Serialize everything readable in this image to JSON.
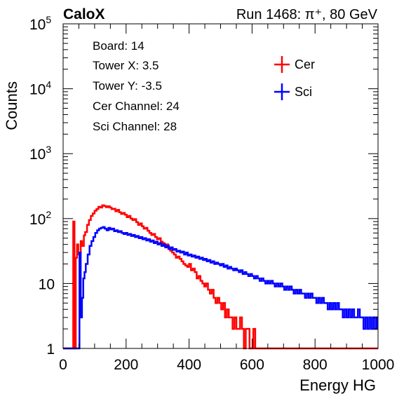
{
  "chart_data": {
    "type": "histogram",
    "title_left": "CaloX",
    "title_right": "Run 1468:   π⁺, 80 GeV",
    "xlabel": "Energy HG",
    "ylabel": "Counts",
    "xlim": [
      0,
      1000
    ],
    "ylim": [
      1,
      100000
    ],
    "yscale": "log",
    "x_ticks": [
      {
        "value": 0,
        "label": "0"
      },
      {
        "value": 200,
        "label": "200"
      },
      {
        "value": 400,
        "label": "400"
      },
      {
        "value": 600,
        "label": "600"
      },
      {
        "value": 800,
        "label": "800"
      },
      {
        "value": 1000,
        "label": "1000"
      }
    ],
    "y_ticks": [
      {
        "value": 1,
        "base": "1",
        "exp": ""
      },
      {
        "value": 10,
        "base": "10",
        "exp": ""
      },
      {
        "value": 100,
        "base": "10",
        "exp": "2"
      },
      {
        "value": 1000,
        "base": "10",
        "exp": "3"
      },
      {
        "value": 10000,
        "base": "10",
        "exp": "4"
      },
      {
        "value": 100000,
        "base": "10",
        "exp": "5"
      }
    ],
    "info_lines": [
      "Board: 14",
      "Tower X: 3.5",
      "Tower Y: -3.5",
      "Cer Channel: 24",
      "Sci Channel: 28"
    ],
    "legend_position": "top-right",
    "series": [
      {
        "name": "Cer",
        "color": "#ff0000",
        "points": [
          [
            0,
            1
          ],
          [
            30,
            1
          ],
          [
            32,
            90
          ],
          [
            36,
            1
          ],
          [
            38,
            1
          ],
          [
            40,
            25
          ],
          [
            44,
            40
          ],
          [
            48,
            28
          ],
          [
            52,
            30
          ],
          [
            56,
            45
          ],
          [
            60,
            38
          ],
          [
            66,
            55
          ],
          [
            70,
            62
          ],
          [
            76,
            80
          ],
          [
            82,
            95
          ],
          [
            88,
            110
          ],
          [
            94,
            120
          ],
          [
            100,
            132
          ],
          [
            106,
            140
          ],
          [
            112,
            152
          ],
          [
            118,
            148
          ],
          [
            124,
            160
          ],
          [
            130,
            156
          ],
          [
            136,
            150
          ],
          [
            142,
            155
          ],
          [
            148,
            148
          ],
          [
            154,
            140
          ],
          [
            160,
            142
          ],
          [
            166,
            130
          ],
          [
            172,
            136
          ],
          [
            178,
            125
          ],
          [
            184,
            118
          ],
          [
            190,
            122
          ],
          [
            196,
            115
          ],
          [
            202,
            105
          ],
          [
            208,
            110
          ],
          [
            214,
            100
          ],
          [
            220,
            95
          ],
          [
            226,
            98
          ],
          [
            232,
            88
          ],
          [
            238,
            80
          ],
          [
            244,
            84
          ],
          [
            250,
            76
          ],
          [
            256,
            70
          ],
          [
            262,
            72
          ],
          [
            268,
            65
          ],
          [
            274,
            60
          ],
          [
            280,
            56
          ],
          [
            286,
            58
          ],
          [
            292,
            52
          ],
          [
            298,
            48
          ],
          [
            304,
            50
          ],
          [
            310,
            44
          ],
          [
            316,
            42
          ],
          [
            322,
            38
          ],
          [
            328,
            40
          ],
          [
            334,
            34
          ],
          [
            340,
            32
          ],
          [
            346,
            30
          ],
          [
            352,
            28
          ],
          [
            358,
            25
          ],
          [
            364,
            26
          ],
          [
            370,
            24
          ],
          [
            376,
            22
          ],
          [
            382,
            20
          ],
          [
            388,
            19
          ],
          [
            394,
            18
          ],
          [
            400,
            20
          ],
          [
            406,
            16
          ],
          [
            412,
            17
          ],
          [
            418,
            15
          ],
          [
            424,
            12
          ],
          [
            430,
            13
          ],
          [
            436,
            11
          ],
          [
            442,
            10
          ],
          [
            448,
            9
          ],
          [
            454,
            10
          ],
          [
            460,
            8
          ],
          [
            466,
            7
          ],
          [
            472,
            8
          ],
          [
            478,
            6
          ],
          [
            484,
            5
          ],
          [
            490,
            6
          ],
          [
            496,
            5
          ],
          [
            502,
            4
          ],
          [
            508,
            5
          ],
          [
            514,
            3
          ],
          [
            520,
            4
          ],
          [
            526,
            3
          ],
          [
            532,
            3
          ],
          [
            538,
            2
          ],
          [
            544,
            3
          ],
          [
            550,
            2
          ],
          [
            556,
            2
          ],
          [
            562,
            3
          ],
          [
            568,
            2
          ],
          [
            574,
            1
          ],
          [
            580,
            2
          ],
          [
            586,
            2
          ],
          [
            592,
            1
          ],
          [
            598,
            1
          ],
          [
            604,
            2
          ],
          [
            610,
            1
          ],
          [
            616,
            1
          ],
          [
            622,
            1
          ],
          [
            628,
            1
          ],
          [
            640,
            1
          ],
          [
            650,
            1
          ],
          [
            660,
            1
          ],
          [
            670,
            1
          ],
          [
            680,
            1
          ],
          [
            690,
            1
          ],
          [
            700,
            1
          ],
          [
            720,
            1
          ],
          [
            740,
            1
          ],
          [
            760,
            1
          ],
          [
            780,
            1
          ],
          [
            800,
            1
          ],
          [
            820,
            1
          ],
          [
            840,
            1
          ],
          [
            860,
            1
          ],
          [
            880,
            1
          ],
          [
            900,
            1
          ],
          [
            920,
            1
          ],
          [
            940,
            1
          ],
          [
            960,
            1
          ],
          [
            980,
            1
          ],
          [
            1000,
            1
          ]
        ]
      },
      {
        "name": "Sci",
        "color": "#0000ff",
        "points": [
          [
            0,
            1
          ],
          [
            50,
            1
          ],
          [
            52,
            30
          ],
          [
            56,
            3
          ],
          [
            60,
            6
          ],
          [
            64,
            12
          ],
          [
            68,
            15
          ],
          [
            72,
            20
          ],
          [
            78,
            28
          ],
          [
            84,
            38
          ],
          [
            90,
            45
          ],
          [
            96,
            52
          ],
          [
            102,
            60
          ],
          [
            108,
            66
          ],
          [
            114,
            70
          ],
          [
            120,
            72
          ],
          [
            126,
            74
          ],
          [
            132,
            70
          ],
          [
            138,
            66
          ],
          [
            144,
            72
          ],
          [
            150,
            68
          ],
          [
            156,
            70
          ],
          [
            162,
            64
          ],
          [
            168,
            66
          ],
          [
            174,
            62
          ],
          [
            180,
            64
          ],
          [
            186,
            60
          ],
          [
            192,
            58
          ],
          [
            198,
            60
          ],
          [
            204,
            56
          ],
          [
            210,
            58
          ],
          [
            216,
            54
          ],
          [
            222,
            56
          ],
          [
            228,
            52
          ],
          [
            234,
            54
          ],
          [
            240,
            50
          ],
          [
            246,
            52
          ],
          [
            252,
            48
          ],
          [
            258,
            50
          ],
          [
            264,
            46
          ],
          [
            270,
            48
          ],
          [
            276,
            44
          ],
          [
            282,
            46
          ],
          [
            288,
            42
          ],
          [
            294,
            44
          ],
          [
            300,
            40
          ],
          [
            306,
            42
          ],
          [
            312,
            38
          ],
          [
            318,
            40
          ],
          [
            324,
            36
          ],
          [
            330,
            38
          ],
          [
            336,
            34
          ],
          [
            342,
            36
          ],
          [
            348,
            33
          ],
          [
            354,
            34
          ],
          [
            360,
            31
          ],
          [
            366,
            32
          ],
          [
            372,
            30
          ],
          [
            378,
            31
          ],
          [
            384,
            28
          ],
          [
            390,
            30
          ],
          [
            396,
            27
          ],
          [
            402,
            28
          ],
          [
            408,
            26
          ],
          [
            414,
            27
          ],
          [
            420,
            25
          ],
          [
            426,
            26
          ],
          [
            432,
            24
          ],
          [
            438,
            25
          ],
          [
            444,
            23
          ],
          [
            450,
            24
          ],
          [
            456,
            22
          ],
          [
            462,
            23
          ],
          [
            468,
            21
          ],
          [
            474,
            22
          ],
          [
            480,
            20
          ],
          [
            486,
            21
          ],
          [
            492,
            20
          ],
          [
            498,
            19
          ],
          [
            504,
            20
          ],
          [
            510,
            18
          ],
          [
            516,
            19
          ],
          [
            522,
            17
          ],
          [
            528,
            18
          ],
          [
            534,
            17
          ],
          [
            540,
            16
          ],
          [
            546,
            17
          ],
          [
            552,
            16
          ],
          [
            558,
            15
          ],
          [
            564,
            16
          ],
          [
            570,
            14
          ],
          [
            576,
            15
          ],
          [
            582,
            14
          ],
          [
            588,
            13
          ],
          [
            594,
            14
          ],
          [
            600,
            13
          ],
          [
            606,
            12
          ],
          [
            612,
            13
          ],
          [
            618,
            12
          ],
          [
            624,
            11
          ],
          [
            630,
            12
          ],
          [
            636,
            11
          ],
          [
            642,
            10
          ],
          [
            648,
            11
          ],
          [
            654,
            10
          ],
          [
            660,
            11
          ],
          [
            666,
            10
          ],
          [
            672,
            9
          ],
          [
            678,
            10
          ],
          [
            684,
            9
          ],
          [
            690,
            10
          ],
          [
            696,
            9
          ],
          [
            702,
            8
          ],
          [
            708,
            9
          ],
          [
            714,
            8
          ],
          [
            720,
            9
          ],
          [
            726,
            8
          ],
          [
            732,
            7
          ],
          [
            738,
            8
          ],
          [
            744,
            7
          ],
          [
            750,
            8
          ],
          [
            756,
            7
          ],
          [
            762,
            7
          ],
          [
            768,
            6
          ],
          [
            774,
            7
          ],
          [
            780,
            6
          ],
          [
            786,
            7
          ],
          [
            792,
            6
          ],
          [
            798,
            6
          ],
          [
            804,
            5
          ],
          [
            810,
            6
          ],
          [
            816,
            5
          ],
          [
            822,
            6
          ],
          [
            828,
            5
          ],
          [
            834,
            5
          ],
          [
            840,
            4
          ],
          [
            846,
            5
          ],
          [
            852,
            4
          ],
          [
            858,
            5
          ],
          [
            864,
            4
          ],
          [
            870,
            5
          ],
          [
            876,
            4
          ],
          [
            882,
            4
          ],
          [
            888,
            3
          ],
          [
            894,
            4
          ],
          [
            900,
            3
          ],
          [
            906,
            4
          ],
          [
            912,
            3
          ],
          [
            918,
            4
          ],
          [
            924,
            3
          ],
          [
            930,
            3
          ],
          [
            936,
            4
          ],
          [
            942,
            3
          ],
          [
            948,
            3
          ],
          [
            954,
            2
          ],
          [
            960,
            3
          ],
          [
            966,
            2
          ],
          [
            972,
            3
          ],
          [
            978,
            2
          ],
          [
            984,
            3
          ],
          [
            990,
            2
          ],
          [
            996,
            3
          ],
          [
            1000,
            3
          ]
        ]
      }
    ]
  }
}
